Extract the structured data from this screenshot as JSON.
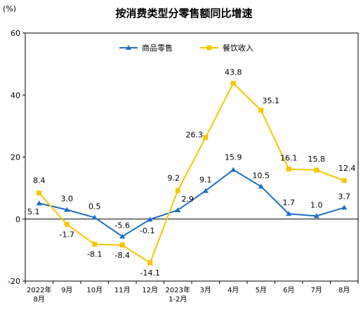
{
  "chart_data": {
    "type": "line",
    "title": "按消费类型分零售额同比增速",
    "unit_label": "(%)",
    "categories": [
      "2022年\n8月",
      "9月",
      "10月",
      "11月",
      "12月",
      "2023年\n1-2月",
      "3月",
      "4月",
      "5月",
      "6月",
      "7月",
      "8月"
    ],
    "series": [
      {
        "name": "商品零售",
        "color": "#1f6fc5",
        "marker": "triangle",
        "values": [
          5.1,
          3.0,
          0.5,
          -5.6,
          -0.1,
          2.9,
          9.1,
          15.9,
          10.5,
          1.7,
          1.0,
          3.7
        ],
        "labels": [
          "5.1",
          "3.0",
          "0.5",
          "-5.6",
          "-0.1",
          "2.9",
          "9.1",
          "15.9",
          "10.5",
          "1.7",
          "1.0",
          "3.7"
        ]
      },
      {
        "name": "餐饮收入",
        "color": "#f7c600",
        "marker": "square",
        "values": [
          8.4,
          -1.7,
          -8.1,
          -8.4,
          -14.1,
          9.2,
          26.3,
          43.8,
          35.1,
          16.1,
          15.8,
          12.4
        ],
        "labels": [
          "8.4",
          "-1.7",
          "-8.1",
          "-8.4",
          "-14.1",
          "9.2",
          "26.3",
          "43.8",
          "35.1",
          "16.1",
          "15.8",
          "12.4"
        ]
      }
    ],
    "yticks": [
      "-20",
      "0",
      "20",
      "40",
      "60"
    ],
    "ylim": [
      -20,
      60
    ],
    "grid": false,
    "legend_position": "top-center"
  }
}
